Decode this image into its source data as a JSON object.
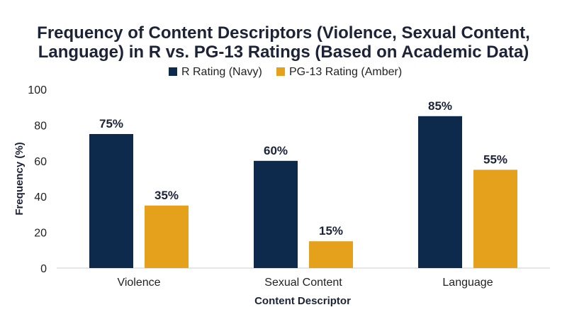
{
  "chart_data": {
    "type": "bar",
    "title_lines": [
      "Frequency of Content Descriptors (Violence, Sexual Content,",
      "Language) in R vs. PG-13 Ratings (Based on Academic Data)"
    ],
    "xlabel": "Content Descriptor",
    "ylabel": "Frequency (%)",
    "categories": [
      "Violence",
      "Sexual Content",
      "Language"
    ],
    "series": [
      {
        "name": "R Rating (Navy)",
        "color": "#0d2a4d",
        "values": [
          75,
          60,
          85
        ],
        "labels": [
          "75%",
          "60%",
          "85%"
        ]
      },
      {
        "name": "PG-13 Rating (Amber)",
        "color": "#e6a11c",
        "values": [
          35,
          15,
          55
        ],
        "labels": [
          "35%",
          "15%",
          "55%"
        ]
      }
    ],
    "ylim": [
      0,
      100
    ],
    "yticks": [
      0,
      20,
      40,
      60,
      80,
      100
    ],
    "grid": false,
    "legend_position": "top-center"
  }
}
